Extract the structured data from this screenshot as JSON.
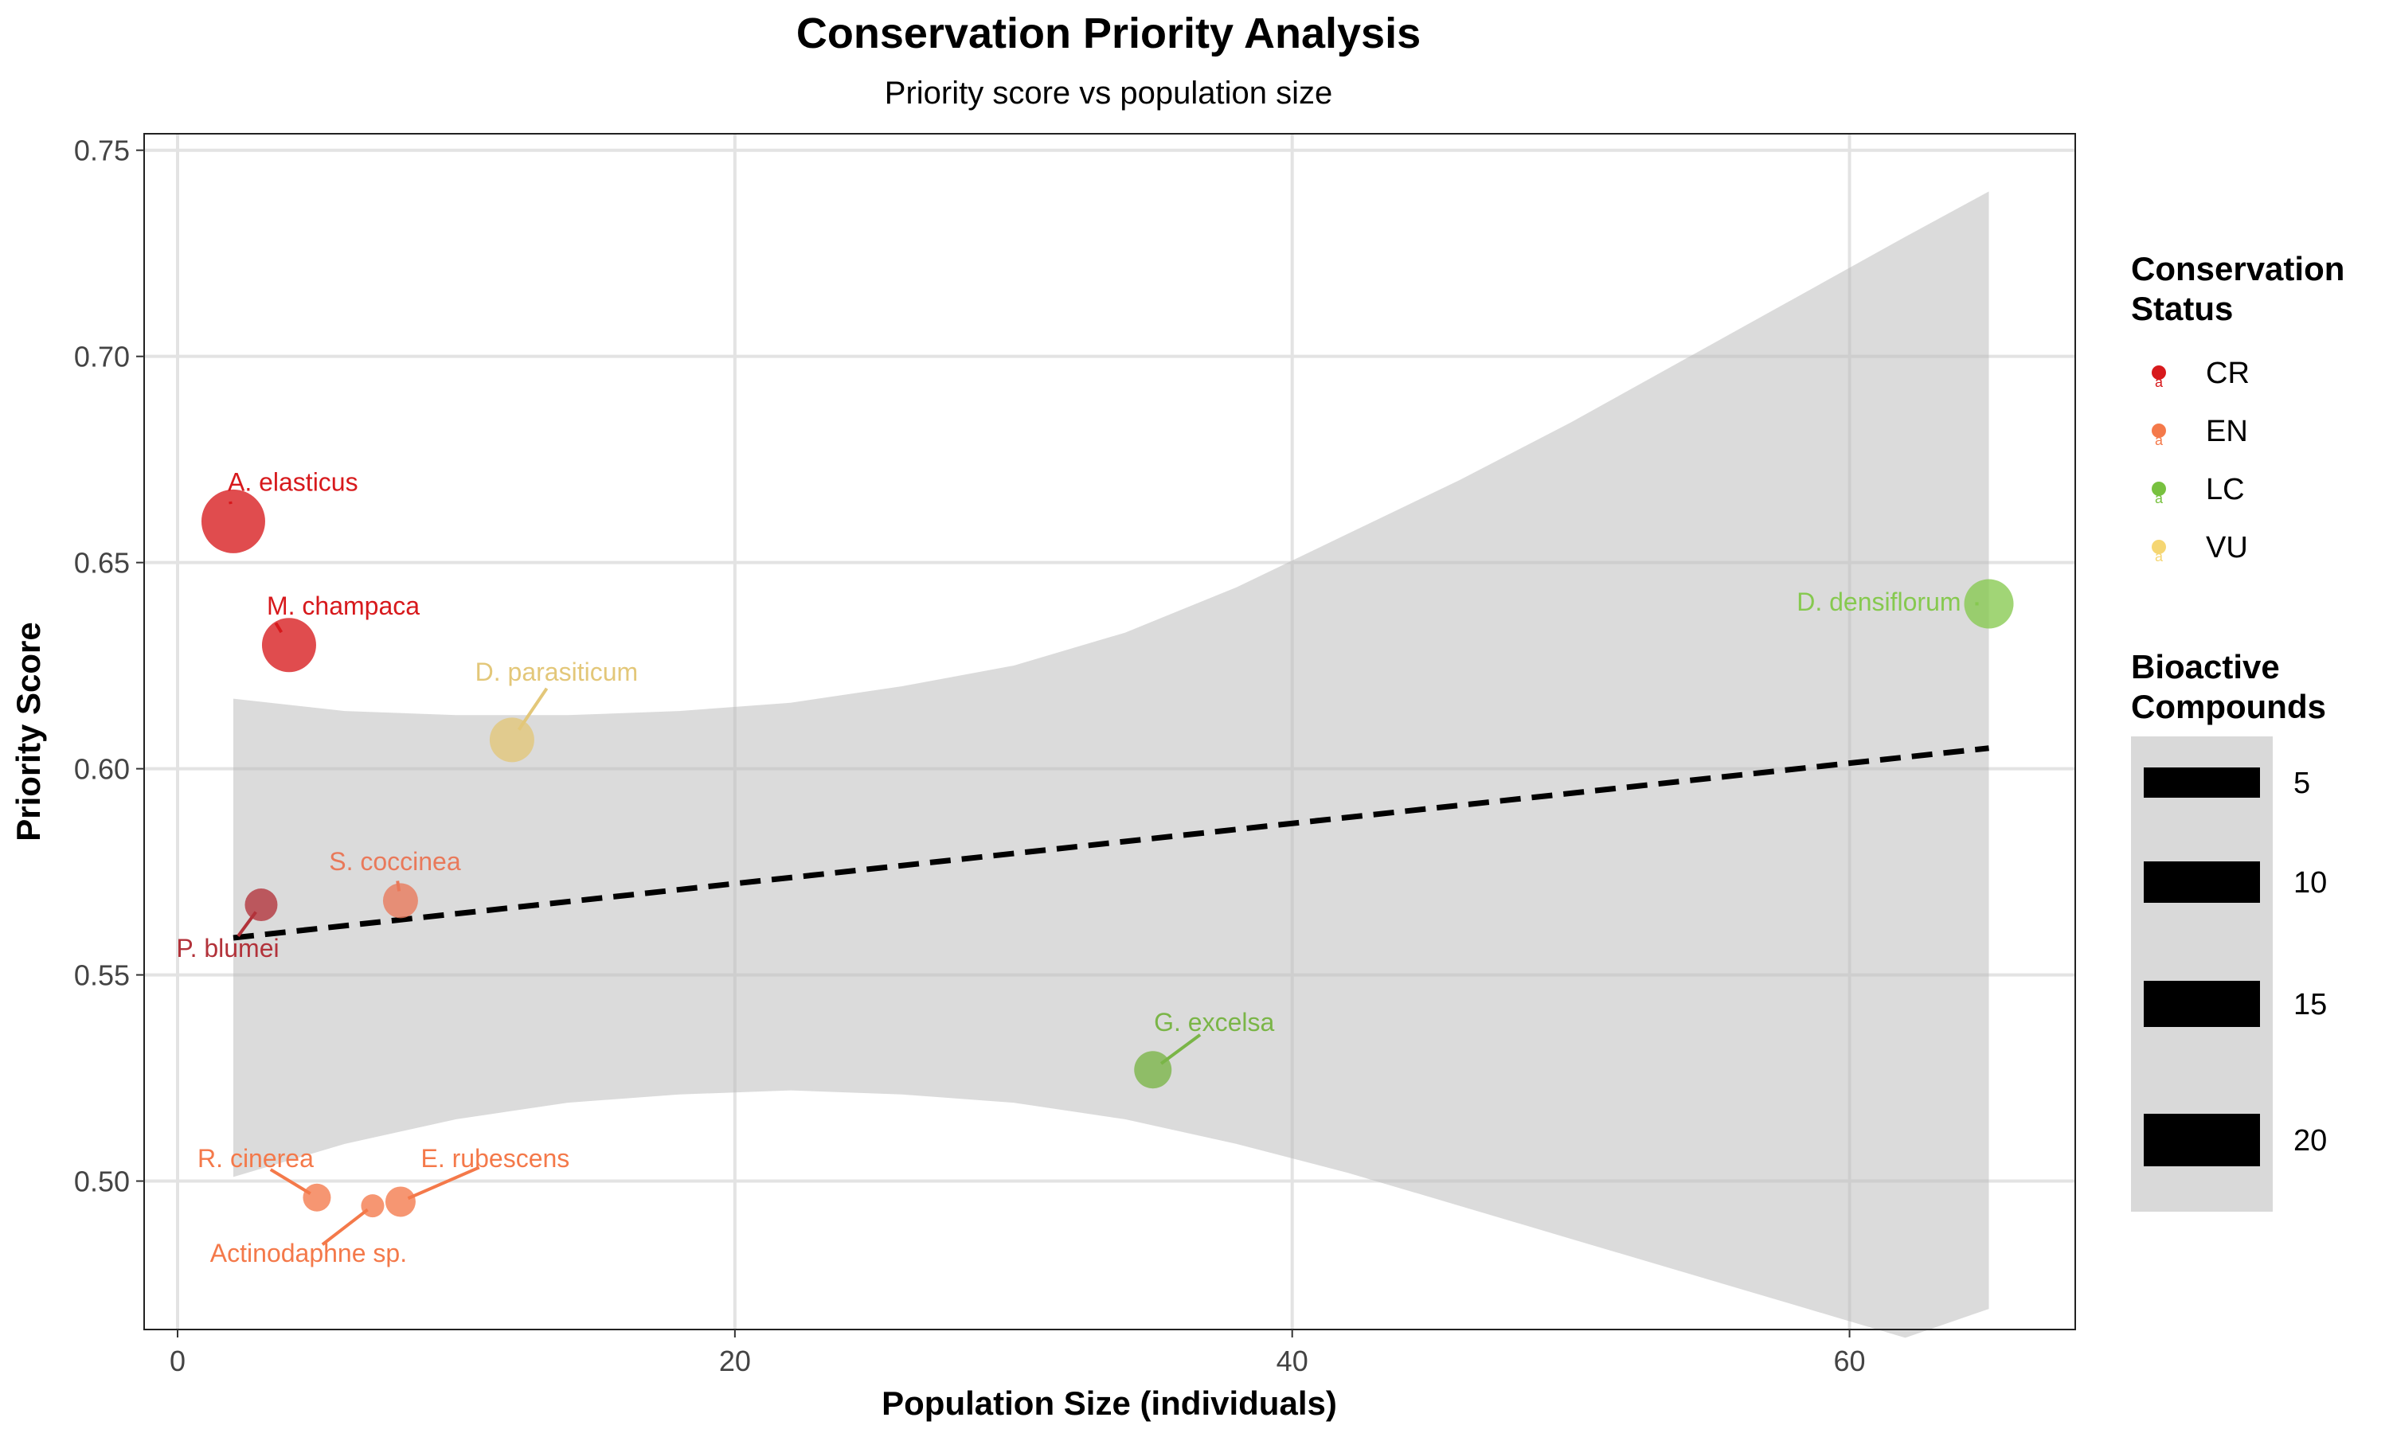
{
  "chart_data": {
    "type": "scatter",
    "title": "Conservation Priority Analysis",
    "subtitle": "Priority score vs population size",
    "xlabel": "Population Size (individuals)",
    "ylabel": "Priority Score",
    "xlim": [
      -1.2,
      68.1
    ],
    "ylim": [
      0.464,
      0.754
    ],
    "x_ticks": [
      0,
      20,
      40,
      60
    ],
    "y_ticks": [
      0.5,
      0.55,
      0.6,
      0.65,
      0.7,
      0.75
    ],
    "x_tick_labels": [
      "0",
      "20",
      "40",
      "60"
    ],
    "y_tick_labels": [
      "0.50",
      "0.55",
      "0.60",
      "0.65",
      "0.70",
      "0.75"
    ],
    "grid": true,
    "legend_position": "right",
    "status_legend": {
      "title_lines": [
        "Conservation",
        "Status"
      ],
      "key_glyph": "a",
      "entries": [
        {
          "label": "CR",
          "color": "#d7191c"
        },
        {
          "label": "EN",
          "color": "#f4794a"
        },
        {
          "label": "LC",
          "color": "#78c13f"
        },
        {
          "label": "VU",
          "color": "#f5d673"
        }
      ]
    },
    "size_legend": {
      "title_lines": [
        "Bioactive",
        "Compounds"
      ],
      "entries": [
        "5",
        "10",
        "15",
        "20"
      ]
    },
    "trend_line": {
      "method": "linear",
      "style": "dashed",
      "x": [
        2,
        65
      ],
      "y": [
        0.559,
        0.605
      ]
    },
    "confidence_band": {
      "x": [
        2,
        6,
        10,
        14,
        18,
        22,
        26,
        30,
        34,
        38,
        42,
        46,
        50,
        54,
        58,
        62,
        65
      ],
      "upper": [
        0.617,
        0.614,
        0.613,
        0.613,
        0.614,
        0.616,
        0.62,
        0.625,
        0.633,
        0.644,
        0.657,
        0.67,
        0.684,
        0.699,
        0.714,
        0.729,
        0.74
      ],
      "lower": [
        0.501,
        0.509,
        0.515,
        0.519,
        0.521,
        0.522,
        0.521,
        0.519,
        0.515,
        0.509,
        0.502,
        0.494,
        0.486,
        0.478,
        0.47,
        0.462,
        0.469
      ]
    },
    "points": [
      {
        "label": "A. elasticus",
        "status": "CR",
        "x": 2,
        "y": 0.66,
        "compounds": 20,
        "color": "#d7191c",
        "label_anchor": "start",
        "label_dx": -0.2,
        "label_dy": 0.009
      },
      {
        "label": "M. champaca",
        "status": "CR",
        "x": 4,
        "y": 0.63,
        "compounds": 16,
        "color": "#d7191c",
        "label_anchor": "start",
        "label_dx": -0.8,
        "label_dy": 0.009
      },
      {
        "label": "P. blumei",
        "status": "CR",
        "x": 3,
        "y": 0.567,
        "compounds": 7,
        "color": "#b2323a",
        "label_anchor": "middle",
        "label_dx": -1.2,
        "label_dy": -0.011
      },
      {
        "label": "D. parasiticum",
        "status": "VU",
        "x": 12,
        "y": 0.607,
        "compounds": 12,
        "color": "#e3c779",
        "label_anchor": "middle",
        "label_dx": 1.6,
        "label_dy": 0.016
      },
      {
        "label": "S. coccinea",
        "status": "EN",
        "x": 8,
        "y": 0.568,
        "compounds": 8,
        "color": "#e9795a",
        "label_anchor": "middle",
        "label_dx": -0.2,
        "label_dy": 0.009
      },
      {
        "label": "R. cinerea",
        "status": "EN",
        "x": 5,
        "y": 0.496,
        "compounds": 5,
        "color": "#f4794a",
        "label_anchor": "middle",
        "label_dx": -2.2,
        "label_dy": 0.009
      },
      {
        "label": "E. rubescens",
        "status": "EN",
        "x": 8,
        "y": 0.495,
        "compounds": 6,
        "color": "#f4794a",
        "label_anchor": "middle",
        "label_dx": 3.4,
        "label_dy": 0.01
      },
      {
        "label": "Actinodaphne sp.",
        "status": "EN",
        "x": 7,
        "y": 0.494,
        "compounds": 3,
        "color": "#f4794a",
        "label_anchor": "middle",
        "label_dx": -2.3,
        "label_dy": -0.012
      },
      {
        "label": "G. excelsa",
        "status": "LC",
        "x": 35,
        "y": 0.527,
        "compounds": 9,
        "color": "#7ab547",
        "label_anchor": "middle",
        "label_dx": 2.2,
        "label_dy": 0.011
      },
      {
        "label": "D. densiflorum",
        "status": "LC",
        "x": 65,
        "y": 0.64,
        "compounds": 14,
        "color": "#86c94f",
        "label_anchor": "end",
        "label_dx": -1.0,
        "label_dy": 0.0
      }
    ]
  }
}
